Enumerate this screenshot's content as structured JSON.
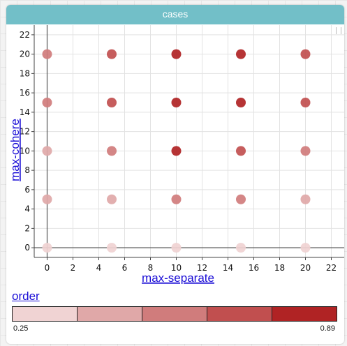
{
  "title": "cases",
  "legend": {
    "title": "order",
    "min_label": "0.25",
    "max_label": "0.89",
    "colors": [
      "#f0d3d3",
      "#e0a8a8",
      "#d07c7c",
      "#c14f4f",
      "#b02324"
    ]
  },
  "chart_data": {
    "type": "scatter",
    "xlabel": "max-separate",
    "ylabel": "max-cohere",
    "xlim": [
      -1,
      23
    ],
    "ylim": [
      -1,
      23
    ],
    "xticks": [
      0,
      2,
      4,
      6,
      8,
      10,
      12,
      14,
      16,
      18,
      20,
      22
    ],
    "yticks": [
      0,
      2,
      4,
      6,
      8,
      10,
      12,
      14,
      16,
      18,
      20,
      22
    ],
    "grid": true,
    "color_scale": {
      "name": "order",
      "min": 0.25,
      "max": 0.89
    },
    "points": [
      {
        "x": 0,
        "y": 0,
        "color": "#f0d3d3"
      },
      {
        "x": 5,
        "y": 0,
        "color": "#f0d3d3"
      },
      {
        "x": 10,
        "y": 0,
        "color": "#f0d3d3"
      },
      {
        "x": 15,
        "y": 0,
        "color": "#f0d3d3"
      },
      {
        "x": 20,
        "y": 0,
        "color": "#f0d3d3"
      },
      {
        "x": 0,
        "y": 5,
        "color": "#e0a8a8"
      },
      {
        "x": 5,
        "y": 5,
        "color": "#e0a8a8"
      },
      {
        "x": 10,
        "y": 5,
        "color": "#d07c7c"
      },
      {
        "x": 15,
        "y": 5,
        "color": "#d07c7c"
      },
      {
        "x": 20,
        "y": 5,
        "color": "#e0a8a8"
      },
      {
        "x": 0,
        "y": 10,
        "color": "#e0a8a8"
      },
      {
        "x": 5,
        "y": 10,
        "color": "#d07c7c"
      },
      {
        "x": 10,
        "y": 10,
        "color": "#b02324"
      },
      {
        "x": 15,
        "y": 10,
        "color": "#c14f4f"
      },
      {
        "x": 20,
        "y": 10,
        "color": "#d07c7c"
      },
      {
        "x": 0,
        "y": 15,
        "color": "#d07c7c"
      },
      {
        "x": 5,
        "y": 15,
        "color": "#c14f4f"
      },
      {
        "x": 10,
        "y": 15,
        "color": "#b02324"
      },
      {
        "x": 15,
        "y": 15,
        "color": "#b02324"
      },
      {
        "x": 20,
        "y": 15,
        "color": "#c14f4f"
      },
      {
        "x": 0,
        "y": 20,
        "color": "#d07c7c"
      },
      {
        "x": 5,
        "y": 20,
        "color": "#c14f4f"
      },
      {
        "x": 10,
        "y": 20,
        "color": "#b02324"
      },
      {
        "x": 15,
        "y": 20,
        "color": "#b02324"
      },
      {
        "x": 20,
        "y": 20,
        "color": "#c14f4f"
      }
    ]
  }
}
